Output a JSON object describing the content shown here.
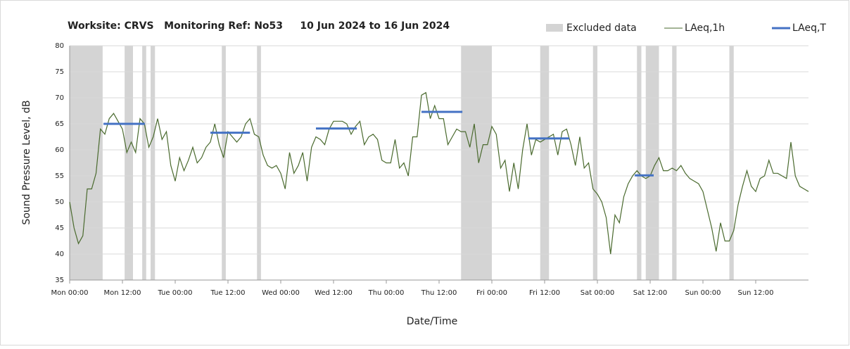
{
  "chart_data": {
    "type": "line",
    "title": "Worksite: CRVS   Monitoring Ref: No53     10 Jun 2024 to 16 Jun 2024",
    "xlabel": "Date/Time",
    "ylabel": "Sound Pressure Level, dB",
    "xlim": [
      0,
      168
    ],
    "ylim": [
      35,
      80
    ],
    "yticks": [
      35,
      40,
      45,
      50,
      55,
      60,
      65,
      70,
      75,
      80
    ],
    "xticks": [
      {
        "value": 0,
        "label": "Mon 00:00"
      },
      {
        "value": 12,
        "label": "Mon 12:00"
      },
      {
        "value": 24,
        "label": "Tue 00:00"
      },
      {
        "value": 36,
        "label": "Tue 12:00"
      },
      {
        "value": 48,
        "label": "Wed 00:00"
      },
      {
        "value": 60,
        "label": "Wed 12:00"
      },
      {
        "value": 72,
        "label": "Thu 00:00"
      },
      {
        "value": 84,
        "label": "Thu 12:00"
      },
      {
        "value": 96,
        "label": "Fri 00:00"
      },
      {
        "value": 108,
        "label": "Fri 12:00"
      },
      {
        "value": 120,
        "label": "Sat 00:00"
      },
      {
        "value": 132,
        "label": "Sat 12:00"
      },
      {
        "value": 144,
        "label": "Sun 00:00"
      },
      {
        "value": 156,
        "label": "Sun 12:00"
      }
    ],
    "grid": true,
    "excluded": {
      "name": "Excluded data",
      "color": "#d4d4d4",
      "ranges": [
        [
          0,
          7.5
        ],
        [
          12.5,
          14.4
        ],
        [
          16.5,
          17.4
        ],
        [
          18.4,
          19.4
        ],
        [
          34.6,
          35.5
        ],
        [
          42.6,
          43.5
        ],
        [
          89,
          96
        ],
        [
          107,
          109
        ],
        [
          119,
          120
        ],
        [
          129,
          130
        ],
        [
          131,
          134
        ],
        [
          137,
          138
        ],
        [
          150,
          151
        ]
      ]
    },
    "series": [
      {
        "name": "LAeq,1h",
        "color": "#4a6a2e",
        "x": [
          0,
          1,
          2,
          3,
          4,
          5,
          6,
          7,
          8,
          9,
          10,
          11,
          12,
          13,
          14,
          15,
          16,
          17,
          18,
          19,
          20,
          21,
          22,
          23,
          24,
          25,
          26,
          27,
          28,
          29,
          30,
          31,
          32,
          33,
          34,
          35,
          36,
          37,
          38,
          39,
          40,
          41,
          42,
          43,
          44,
          45,
          46,
          47,
          48,
          49,
          50,
          51,
          52,
          53,
          54,
          55,
          56,
          57,
          58,
          59,
          60,
          61,
          62,
          63,
          64,
          65,
          66,
          67,
          68,
          69,
          70,
          71,
          72,
          73,
          74,
          75,
          76,
          77,
          78,
          79,
          80,
          81,
          82,
          83,
          84,
          85,
          86,
          87,
          88,
          89,
          90,
          91,
          92,
          93,
          94,
          95,
          96,
          97,
          98,
          99,
          100,
          101,
          102,
          103,
          104,
          105,
          106,
          107,
          108,
          109,
          110,
          111,
          112,
          113,
          114,
          115,
          116,
          117,
          118,
          119,
          120,
          121,
          122,
          123,
          124,
          125,
          126,
          127,
          128,
          129,
          130,
          131,
          132,
          133,
          134,
          135,
          136,
          137,
          138,
          139,
          140,
          141,
          142,
          143,
          144,
          145,
          146,
          147,
          148,
          149,
          150,
          151,
          152,
          153,
          154,
          155,
          156,
          157,
          158,
          159,
          160,
          161,
          162,
          163,
          164,
          165,
          166,
          167,
          168
        ],
        "values": [
          50,
          45,
          42,
          43.5,
          52.5,
          52.5,
          55.5,
          64,
          63,
          66,
          67,
          65.5,
          64,
          59.5,
          61.5,
          59.5,
          66,
          65,
          60.5,
          62.5,
          66,
          62,
          63.5,
          57,
          54,
          58.5,
          56,
          58,
          60.5,
          57.5,
          58.5,
          60.5,
          61.5,
          65,
          61,
          58.5,
          63.5,
          62.5,
          61.5,
          62.5,
          65,
          66,
          63,
          62.5,
          59,
          57,
          56.5,
          57,
          55.5,
          52.5,
          59.5,
          55.5,
          57,
          59.5,
          54,
          60.5,
          62.5,
          62,
          61,
          64,
          65.5,
          65.5,
          65.5,
          65,
          63,
          64.5,
          65.5,
          61,
          62.5,
          63,
          62,
          58,
          57.5,
          57.5,
          62,
          56.5,
          57.5,
          55,
          62.5,
          62.5,
          70.5,
          71,
          66,
          68.5,
          66,
          66,
          61,
          62.5,
          64,
          63.5,
          63.5,
          60.5,
          65,
          57.5,
          61,
          61,
          64.5,
          63,
          56.5,
          58,
          52,
          57.5,
          52.5,
          60,
          65,
          59,
          62,
          61.5,
          62,
          62.5,
          63,
          59,
          63.5,
          64,
          61,
          57,
          62.5,
          56.5,
          57.5,
          52.5,
          51.5,
          50,
          47,
          40,
          47.5,
          46,
          51,
          53.5,
          55,
          56,
          55,
          54.5,
          55,
          57,
          58.5,
          56,
          56,
          56.5,
          56,
          57,
          55.5,
          54.5,
          54,
          53.5,
          52,
          48.5,
          45,
          40.5,
          46,
          42.5,
          42.5,
          44.5,
          49.5,
          53,
          56,
          53,
          52,
          54.5,
          55,
          58,
          55.5,
          55.5,
          55,
          54.5,
          61.5,
          55,
          53,
          52.5,
          52
        ]
      },
      {
        "name": "LAeq,T",
        "color": "#4472c4",
        "x_start": [
          7.7,
          32,
          56,
          80,
          104.3,
          128.5
        ],
        "x_end": [
          17.1,
          41,
          65.3,
          89.3,
          113.6,
          132.8
        ],
        "values": [
          65,
          63.3,
          64.1,
          67.3,
          62.2,
          55.1
        ]
      }
    ]
  }
}
